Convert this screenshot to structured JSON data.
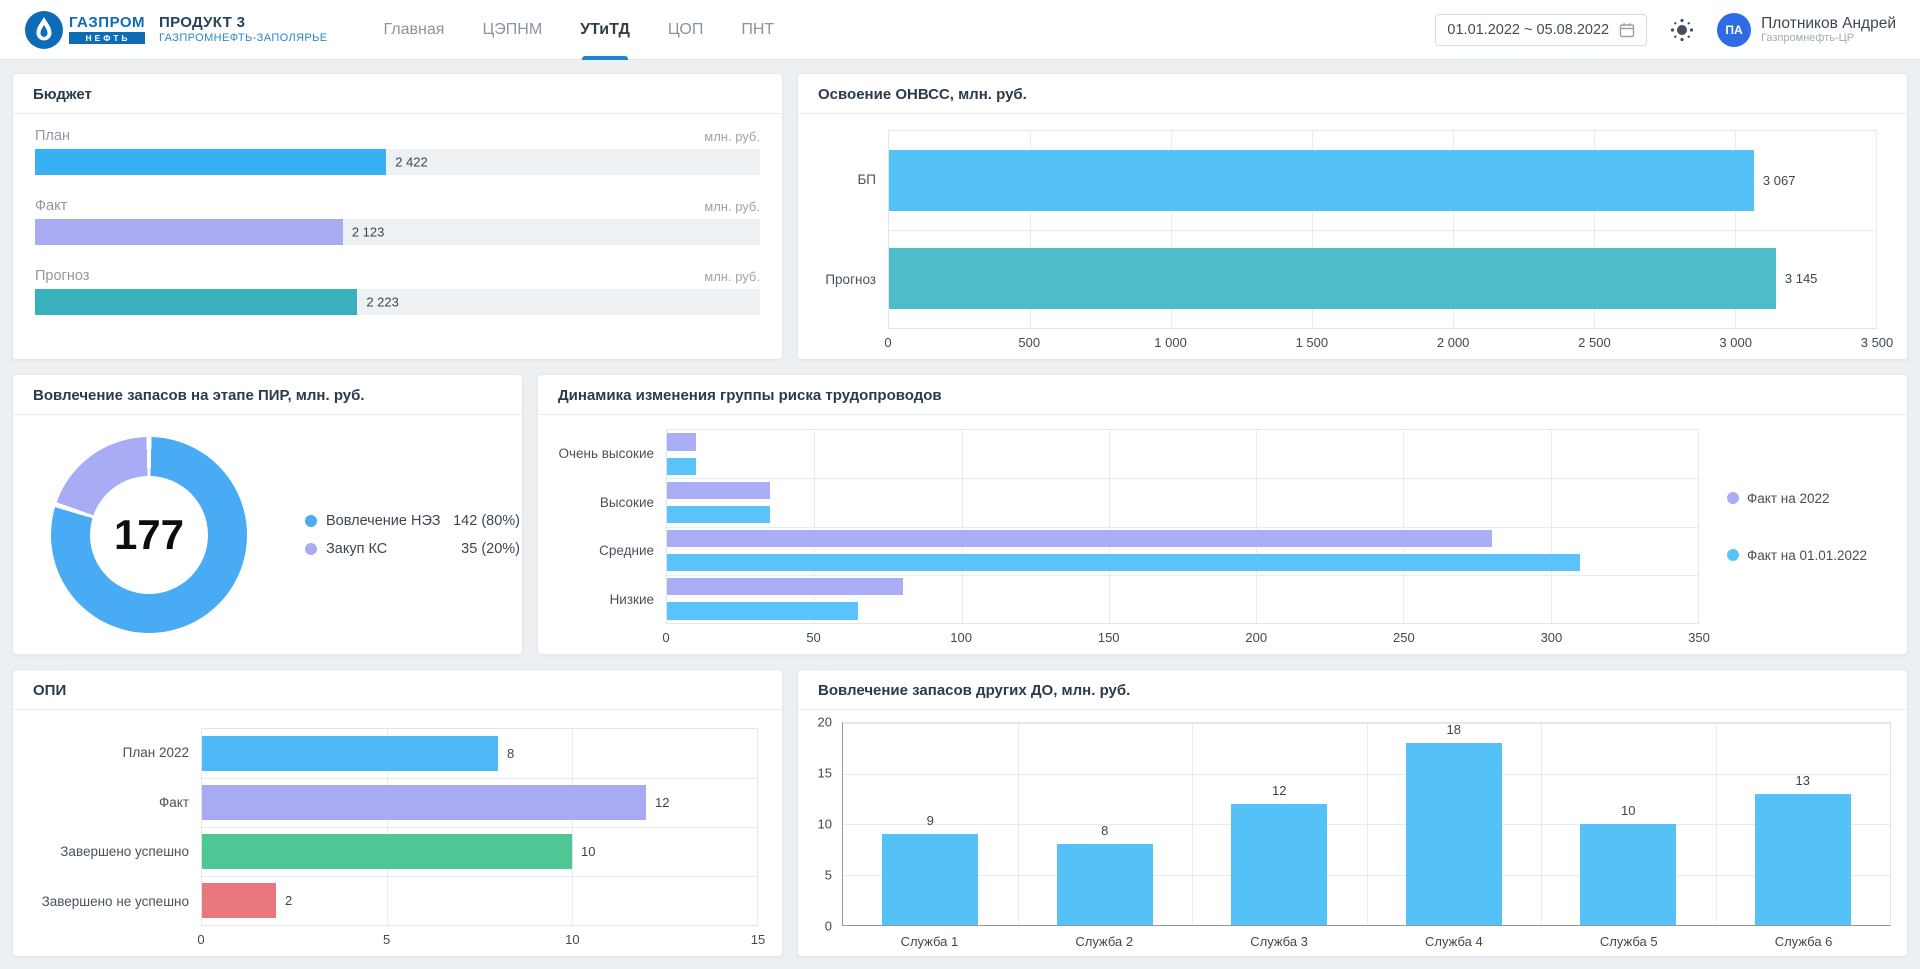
{
  "header": {
    "logo": {
      "brand_top": "ГАЗПРОМ",
      "brand_bottom": "НЕФТЬ"
    },
    "product_title": "ПРОДУКТ 3",
    "product_subtitle": "ГАЗПРОМНЕФТЬ-ЗАПОЛЯРЬЕ",
    "nav": [
      {
        "label": "Главная",
        "active": false
      },
      {
        "label": "ЦЭПНМ",
        "active": false
      },
      {
        "label": "УТиТД",
        "active": true
      },
      {
        "label": "ЦОП",
        "active": false
      },
      {
        "label": "ПНТ",
        "active": false
      }
    ],
    "date_range": "01.01.2022 ~ 05.08.2022",
    "user": {
      "initials": "ПА",
      "name": "Плотников Андрей",
      "org": "Газпромнефть-ЦР"
    }
  },
  "colors": {
    "nav_active_underline": "#1b82d6",
    "logo_blue": "#0d6cb5",
    "avatar_bg": "#2e6ce6"
  },
  "chart_data": [
    {
      "id": "budget",
      "type": "bar",
      "orientation": "horizontal",
      "style": "progress",
      "title": "Бюджет",
      "unit": "млн. руб.",
      "categories": [
        "План",
        "Факт",
        "Прогноз"
      ],
      "values": [
        2422,
        2123,
        2223
      ],
      "value_labels": [
        "2 422",
        "2 123",
        "2 223"
      ],
      "colors": [
        "#38b1f2",
        "#a9abf2",
        "#3aafbd"
      ],
      "xlim": [
        0,
        5000
      ],
      "grid": false
    },
    {
      "id": "onvss",
      "type": "bar",
      "orientation": "horizontal",
      "title": "Освоение ОНВСС, млн. руб.",
      "categories": [
        "БП",
        "Прогноз"
      ],
      "values": [
        3067,
        3145
      ],
      "value_labels": [
        "3 067",
        "3 145"
      ],
      "colors": [
        "#54c1f7",
        "#4fbcc9"
      ],
      "xlim": [
        0,
        3500
      ],
      "xticks": [
        "0",
        "500",
        "1 000",
        "1 500",
        "2 000",
        "2 500",
        "3 000",
        "3 500"
      ],
      "grid": true,
      "bar_height_pct": 62,
      "label_col": 90
    },
    {
      "id": "pir",
      "type": "pie",
      "title": "Вовлечение запасов на этапе ПИР, млн. руб.",
      "center_total": "177",
      "slices": [
        {
          "label": "Вовлечение НЭЗ",
          "value": 142,
          "pct": 80,
          "display": "142 (80%)",
          "color": "#49abf3"
        },
        {
          "label": "Закуп КС",
          "value": 35,
          "pct": 20,
          "display": "35 (20%)",
          "color": "#a9abf5"
        }
      ],
      "legend_position": "right"
    },
    {
      "id": "risk",
      "type": "bar",
      "orientation": "horizontal",
      "title": "Динамика изменения группы риска трудопроводов",
      "categories": [
        "Очень высокие",
        "Высокие",
        "Средние",
        "Низкие"
      ],
      "series": [
        {
          "name": "Факт на 2022",
          "color": "#abadf5",
          "values": [
            10,
            35,
            280,
            80
          ]
        },
        {
          "name": "Факт на 01.01.2022",
          "color": "#5bc3fc",
          "values": [
            10,
            35,
            310,
            65
          ]
        }
      ],
      "xlim": [
        0,
        350
      ],
      "xticks": [
        "0",
        "50",
        "100",
        "150",
        "200",
        "250",
        "300",
        "350"
      ],
      "grid": true,
      "legend_position": "right",
      "label_col": 128,
      "legend_col": 208
    },
    {
      "id": "opi",
      "type": "bar",
      "orientation": "horizontal",
      "title": "ОПИ",
      "categories": [
        "План 2022",
        "Факт",
        "Завершено успешно",
        "Завершено не успешно"
      ],
      "values": [
        8,
        12,
        10,
        2
      ],
      "value_labels": [
        "8",
        "12",
        "10",
        "2"
      ],
      "colors": [
        "#4db9f6",
        "#a9abf2",
        "#4ec795",
        "#e8787d"
      ],
      "xlim": [
        0,
        15
      ],
      "xticks": [
        "0",
        "5",
        "10",
        "15"
      ],
      "grid": true,
      "bar_height_pct": 72,
      "label_col": 188
    },
    {
      "id": "do",
      "type": "bar",
      "orientation": "vertical",
      "title": "Вовлечение запасов других ДО, млн. руб.",
      "categories": [
        "Служба 1",
        "Служба 2",
        "Служба 3",
        "Служба 4",
        "Служба 5",
        "Служба 6"
      ],
      "values": [
        9,
        8,
        12,
        18,
        10,
        13
      ],
      "value_labels": [
        "9",
        "8",
        "12",
        "18",
        "10",
        "13"
      ],
      "color": "#54c1f7",
      "ylim": [
        0,
        20
      ],
      "yticks": [
        "0",
        "5",
        "10",
        "15",
        "20"
      ],
      "grid": true
    }
  ]
}
